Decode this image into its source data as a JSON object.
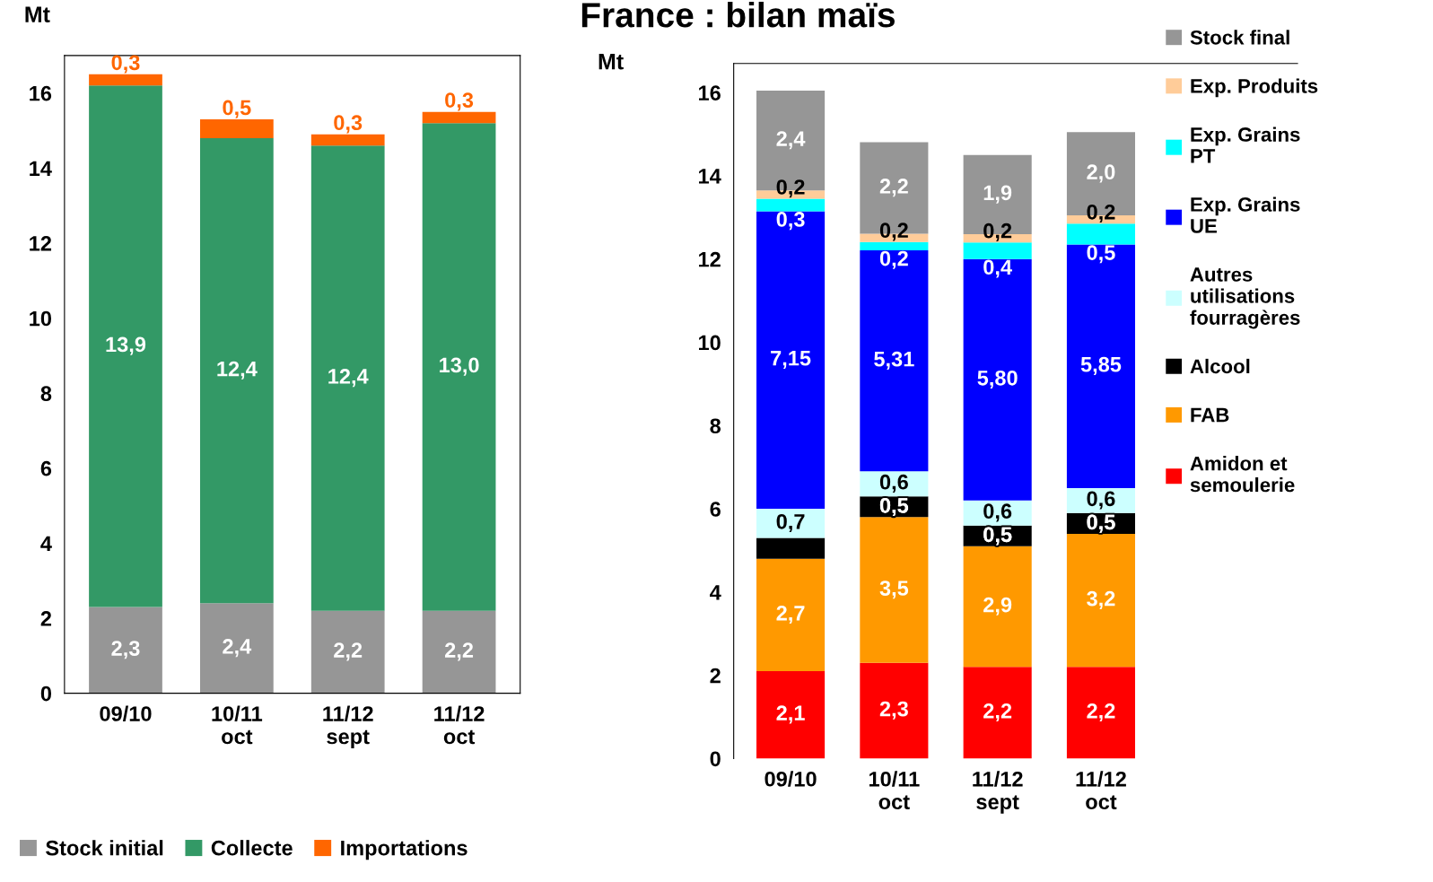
{
  "chart_data": [
    {
      "type": "bar",
      "ylabel": "Mt",
      "stacked": true,
      "categories": [
        "09/10",
        "10/11\noct",
        "11/12\nsept",
        "11/12\noct"
      ],
      "ylim": [
        0,
        17
      ],
      "yticks": [
        0,
        2,
        4,
        6,
        8,
        10,
        12,
        14,
        16
      ],
      "grid": false,
      "legend": "bottom",
      "data_labels": true,
      "series": [
        {
          "name": "Stock initial",
          "color": "#969696",
          "values": [
            2.3,
            2.4,
            2.2,
            2.2
          ],
          "value_labels": [
            "2,3",
            "2,4",
            "2,2",
            "2,2"
          ]
        },
        {
          "name": "Collecte",
          "color": "#339966",
          "values": [
            13.9,
            12.4,
            12.4,
            13.0
          ],
          "value_labels": [
            "13,9",
            "12,4",
            "12,4",
            "13,0"
          ]
        },
        {
          "name": "Importations",
          "color": "#ff6600",
          "values": [
            0.3,
            0.5,
            0.3,
            0.3
          ],
          "value_labels": [
            "0,3",
            "0,5",
            "0,3",
            "0,3"
          ]
        }
      ]
    },
    {
      "type": "bar",
      "title": "France : bilan maïs",
      "ylabel": "Mt",
      "stacked": true,
      "categories": [
        "09/10",
        "10/11\noct",
        "11/12\nsept",
        "11/12\noct"
      ],
      "ylim": [
        0,
        16.7
      ],
      "yticks": [
        0,
        2,
        4,
        6,
        8,
        10,
        12,
        14,
        16
      ],
      "grid": false,
      "legend": "right",
      "data_labels": true,
      "series": [
        {
          "name": "Amidon et\nsemoulerie",
          "color": "#ff0000",
          "values": [
            2.1,
            2.3,
            2.2,
            2.2
          ],
          "value_labels": [
            "2,1",
            "2,3",
            "2,2",
            "2,2"
          ]
        },
        {
          "name": "FAB",
          "color": "#ff9900",
          "values": [
            2.7,
            3.5,
            2.9,
            3.2
          ],
          "value_labels": [
            "2,7",
            "3,5",
            "2,9",
            "3,2"
          ]
        },
        {
          "name": "Alcool",
          "color": "#000000",
          "values": [
            0.5,
            0.5,
            0.5,
            0.5
          ],
          "value_labels": [
            null,
            "0,5",
            "0,5",
            "0,5"
          ]
        },
        {
          "name": "Autres\nutilisations\nfourragères",
          "color": "#ccffff",
          "values": [
            0.7,
            0.6,
            0.6,
            0.6
          ],
          "value_labels": [
            "0,7",
            "0,6",
            "0,6",
            "0,6"
          ]
        },
        {
          "name": "Exp. Grains\nUE",
          "color": "#0000ff",
          "values": [
            7.15,
            5.31,
            5.8,
            5.85
          ],
          "value_labels": [
            "7,15",
            "5,31",
            "5,80",
            "5,85"
          ]
        },
        {
          "name": "Exp. Grains\nPT",
          "color": "#00ffff",
          "values": [
            0.3,
            0.2,
            0.4,
            0.5
          ],
          "value_labels": [
            "0,3",
            "0,2",
            "0,4",
            "0,5"
          ]
        },
        {
          "name": "Exp. Produits",
          "color": "#ffcc99",
          "values": [
            0.2,
            0.2,
            0.2,
            0.2
          ],
          "value_labels": [
            "0,2",
            "0,2",
            "0,2",
            "0,2"
          ]
        },
        {
          "name": "Stock final",
          "color": "#969696",
          "values": [
            2.4,
            2.2,
            1.9,
            2.0
          ],
          "value_labels": [
            "2,4",
            "2,2",
            "1,9",
            "2,0"
          ]
        }
      ]
    }
  ]
}
